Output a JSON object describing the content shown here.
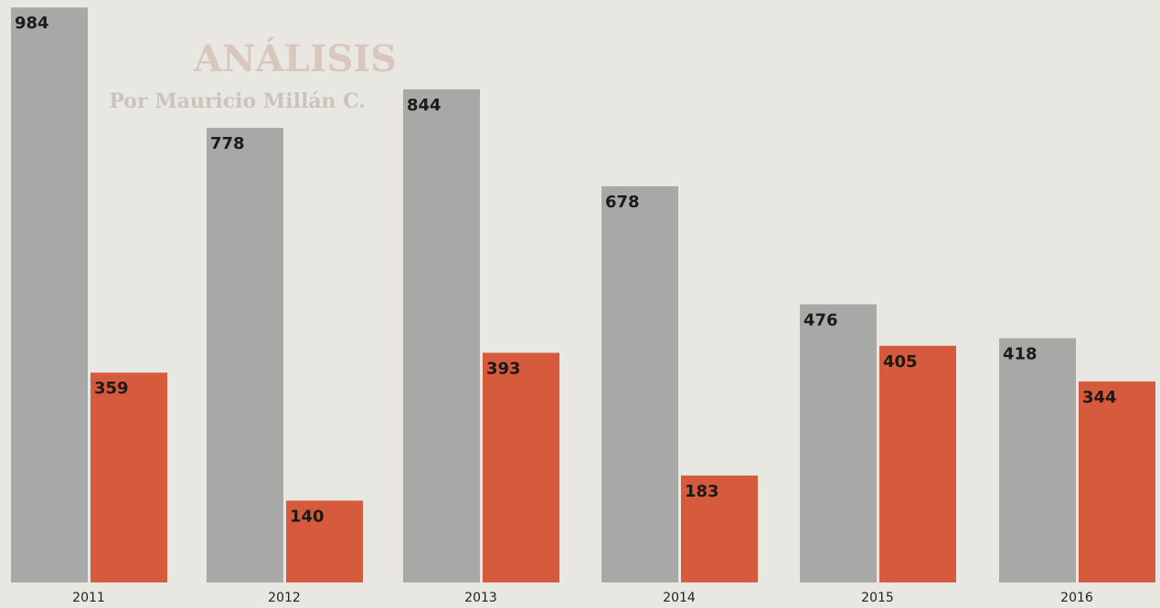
{
  "chart_data": {
    "type": "bar",
    "heading": "ANÁLISIS",
    "byline": "Por Mauricio Millán C.",
    "categories": [
      "2011",
      "2012",
      "2013",
      "2014",
      "2015",
      "2016"
    ],
    "series": [
      {
        "color": "#a8a8a6",
        "values": [
          984,
          778,
          844,
          678,
          476,
          418
        ]
      },
      {
        "color": "#d65a3c",
        "values": [
          359,
          140,
          393,
          183,
          405,
          344
        ]
      }
    ]
  }
}
